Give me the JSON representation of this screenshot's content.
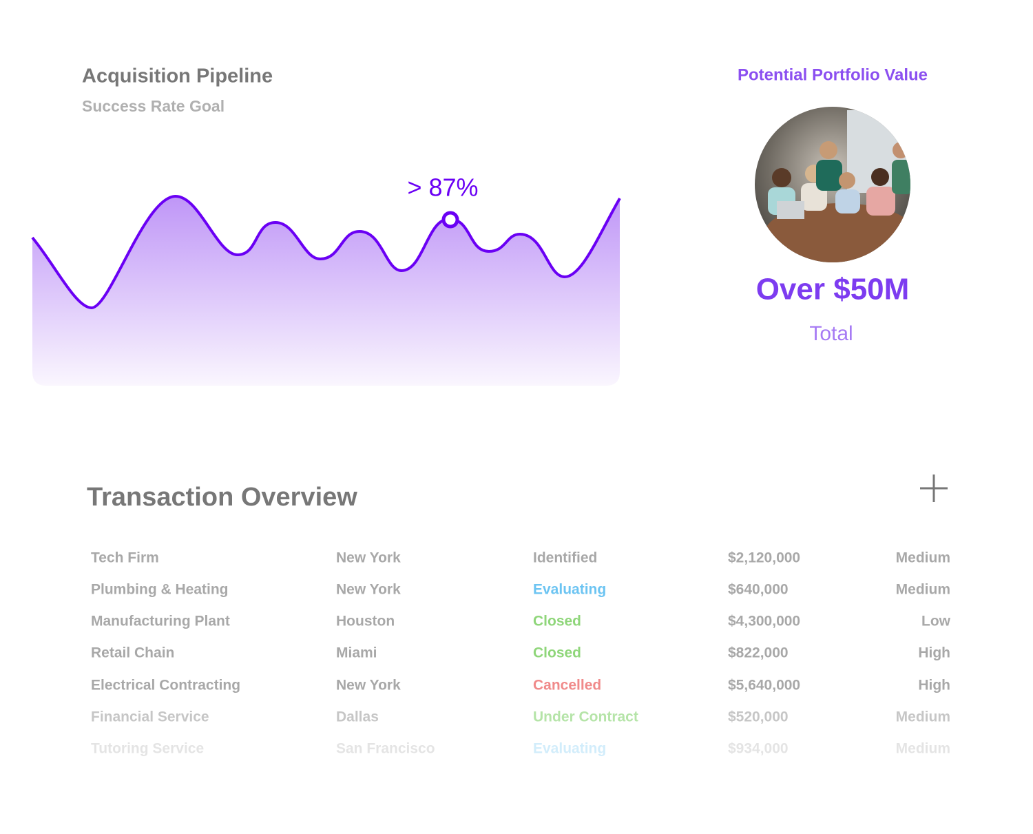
{
  "pipeline": {
    "title": "Acquisition Pipeline",
    "subtitle": "Success Rate Goal",
    "marker_label": "> 87%"
  },
  "portfolio": {
    "title": "Potential Portfolio Value",
    "value": "Over $50M",
    "caption": "Total"
  },
  "transactions": {
    "title": "Transaction Overview",
    "rows": [
      {
        "name": "Tech Firm",
        "city": "New York",
        "status": "Identified",
        "status_color": "#a8a8a8",
        "amount": "$2,120,000",
        "priority": "Medium"
      },
      {
        "name": "Plumbing & Heating",
        "city": "New York",
        "status": "Evaluating",
        "status_color": "#6cc4f2",
        "amount": "$640,000",
        "priority": "Medium"
      },
      {
        "name": "Manufacturing Plant",
        "city": "Houston",
        "status": "Closed",
        "status_color": "#8fd67a",
        "amount": "$4,300,000",
        "priority": "Low"
      },
      {
        "name": "Retail Chain",
        "city": "Miami",
        "status": "Closed",
        "status_color": "#8fd67a",
        "amount": "$822,000",
        "priority": "High"
      },
      {
        "name": "Electrical Contracting",
        "city": "New York",
        "status": "Cancelled",
        "status_color": "#f08a8a",
        "amount": "$5,640,000",
        "priority": "High"
      },
      {
        "name": "Financial Service",
        "city": "Dallas",
        "status": "Under Contract",
        "status_color": "#8fd67a",
        "amount": "$520,000",
        "priority": "Medium"
      },
      {
        "name": "Tutoring Service",
        "city": "San Francisco",
        "status": "Evaluating",
        "status_color": "#6cc4f2",
        "amount": "$934,000",
        "priority": "Medium"
      }
    ]
  }
}
